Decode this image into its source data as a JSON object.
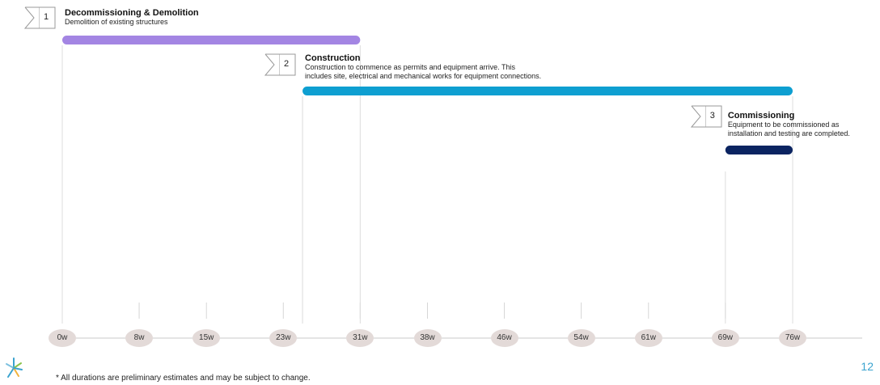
{
  "chart_data": {
    "type": "gantt",
    "x_unit": "weeks",
    "xlim": [
      0,
      76
    ],
    "ticks": [
      "0w",
      "8w",
      "15w",
      "23w",
      "31w",
      "38w",
      "46w",
      "54w",
      "61w",
      "69w",
      "76w"
    ],
    "tick_values": [
      0,
      8,
      15,
      23,
      31,
      38,
      46,
      54,
      61,
      69,
      76
    ],
    "phases": [
      {
        "number": "1",
        "title": "Decommissioning & Demolition",
        "description": [
          "Demolition of existing structures"
        ],
        "start": 0,
        "end": 31,
        "color": "#a385e3"
      },
      {
        "number": "2",
        "title": "Construction",
        "description": [
          "Construction to commence as permits and equipment arrive. This",
          "includes site, electrical and mechanical works for equipment connections."
        ],
        "start": 25,
        "end": 76,
        "color": "#0e9fd1"
      },
      {
        "number": "3",
        "title": "Commissioning",
        "description": [
          "Equipment to be commissioned as",
          "installation and testing are completed."
        ],
        "start": 69,
        "end": 76,
        "color": "#0b2461"
      }
    ]
  },
  "footnote": "* All durations are preliminary estimates and may be subject to change.",
  "page_number": "12",
  "logo_icon": "starburst-logo-icon"
}
